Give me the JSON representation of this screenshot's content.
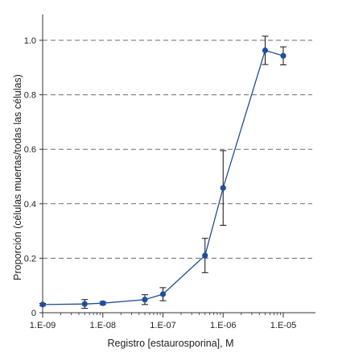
{
  "chart_data": {
    "type": "line",
    "xscale": "log",
    "xlabel": "Registro [estaurosporina], M",
    "ylabel": "Proporción (células muertas/todas las células)",
    "xlim": [
      1e-09,
      1e-05
    ],
    "ylim": [
      0,
      1.0
    ],
    "x_ticks": [
      1e-09,
      1e-08,
      1e-07,
      1e-06,
      1e-05
    ],
    "x_tick_labels": [
      "1.E-09",
      "1.E-08",
      "1.E-07",
      "1.E-06",
      "1.E-05"
    ],
    "y_ticks": [
      0,
      0.2,
      0.4,
      0.6,
      0.8,
      1.0
    ],
    "y_tick_labels": [
      "0",
      "0.2",
      "0.4",
      "0.6",
      "0.8",
      "1.0"
    ],
    "grid": "horizontal dashed",
    "series": [
      {
        "color": "#1f4e9c",
        "x": [
          1e-09,
          5e-09,
          1e-08,
          5e-08,
          1e-07,
          5e-07,
          1e-06,
          5e-06,
          1e-05
        ],
        "y": [
          0.03,
          0.032,
          0.035,
          0.048,
          0.068,
          0.21,
          0.458,
          0.963,
          0.943
        ],
        "y_err": [
          0.004,
          0.016,
          0.006,
          0.018,
          0.024,
          0.063,
          0.137,
          0.052,
          0.033
        ]
      }
    ]
  }
}
